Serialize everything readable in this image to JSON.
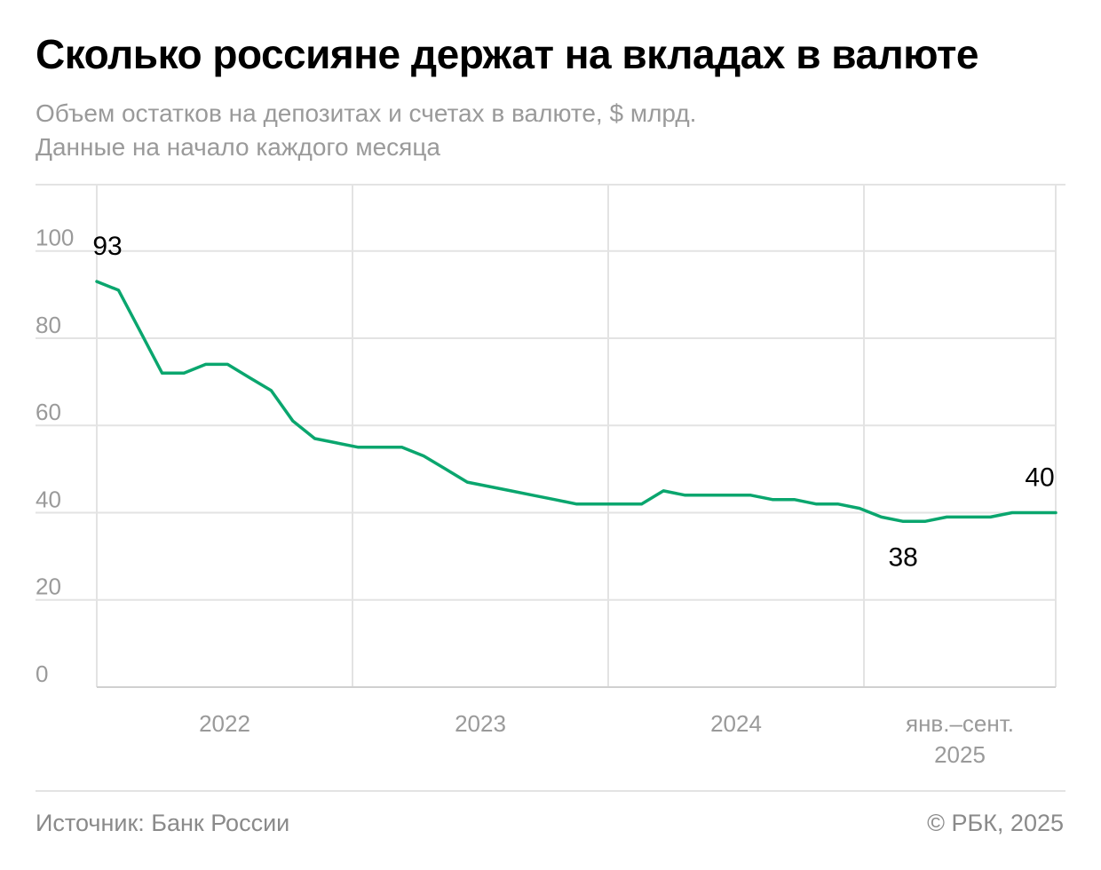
{
  "header": {
    "title": "Сколько россияне держат на вкладах в валюте",
    "subtitle_line1": "Объем остатков на депозитах и счетах в валюте, $ млрд.",
    "subtitle_line2": "Данные на начало каждого месяца"
  },
  "footer": {
    "source": "Источник: Банк России",
    "copyright": "© РБК, 2025"
  },
  "colors": {
    "line": "#0aa66e",
    "grid": "#e3e3e3",
    "axis": "#d0d0d0",
    "muted_text": "#9a9a9a"
  },
  "chart_data": {
    "type": "line",
    "ylim": [
      0,
      115
    ],
    "yticks": [
      0,
      20,
      40,
      60,
      80,
      100
    ],
    "grid": true,
    "period_labels": [
      {
        "label": "2022",
        "line2": ""
      },
      {
        "label": "2023",
        "line2": ""
      },
      {
        "label": "2024",
        "line2": ""
      },
      {
        "label": "янв.–сент.",
        "line2": "2025"
      }
    ],
    "period_months": [
      12,
      12,
      12,
      9
    ],
    "series": [
      {
        "name": "",
        "values": [
          93,
          91,
          81.5,
          72,
          72,
          74,
          74,
          71,
          68,
          61,
          57,
          56,
          55,
          55,
          55,
          53,
          50,
          47,
          46,
          45,
          44,
          43,
          42,
          42,
          42,
          42,
          45,
          44,
          44,
          44,
          44,
          43,
          43,
          42,
          42,
          41,
          39,
          38,
          38,
          39,
          39,
          39,
          40,
          40,
          40
        ]
      }
    ],
    "annotations": [
      {
        "text": "93",
        "index": 0,
        "value": 93
      },
      {
        "text": "38",
        "index": 37,
        "value": 38
      },
      {
        "text": "40",
        "index": 44,
        "value": 40
      }
    ]
  }
}
